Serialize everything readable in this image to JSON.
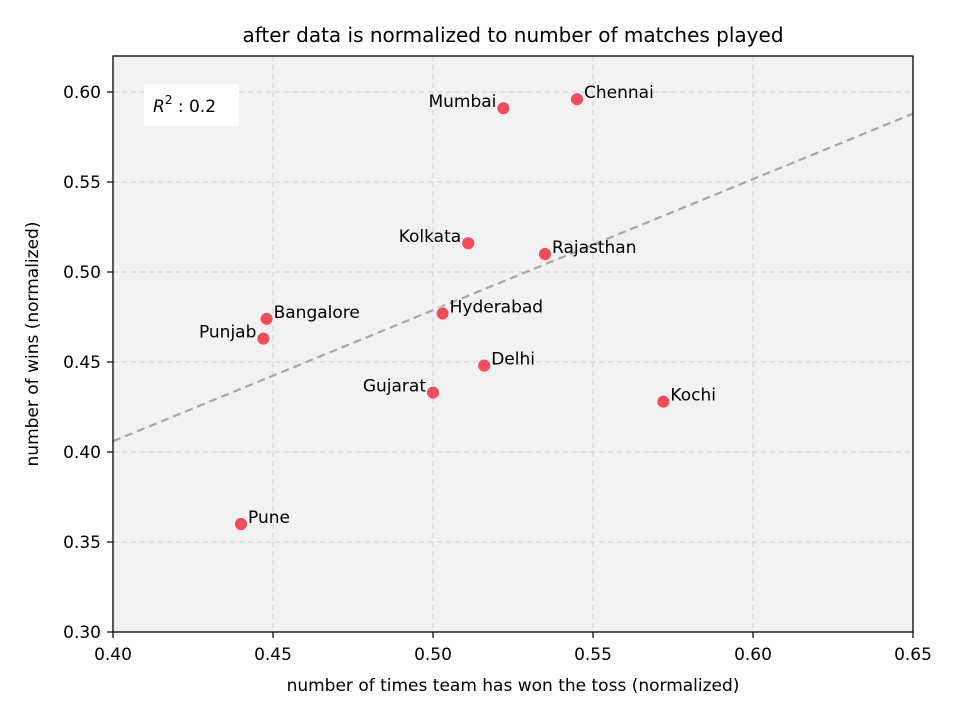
{
  "chart_data": {
    "type": "scatter",
    "title": "after data is normalized to number of matches played",
    "xlabel": "number of times team has won the toss (normalized)",
    "ylabel": "number of wins (normalized)",
    "xlim": [
      0.4,
      0.65
    ],
    "ylim": [
      0.3,
      0.62
    ],
    "xticks": [
      "0.40",
      "0.45",
      "0.50",
      "0.55",
      "0.60",
      "0.65"
    ],
    "yticks": [
      "0.30",
      "0.35",
      "0.40",
      "0.45",
      "0.50",
      "0.55",
      "0.60"
    ],
    "grid": true,
    "point_color": "#f44c58",
    "trendline_color": "#a8a8a8",
    "background_color": "#f2f2f2",
    "annotation": {
      "prefix": "R",
      "sup": "2",
      "suffix": " : 0.2"
    },
    "points": [
      {
        "name": "Mumbai",
        "x": 0.522,
        "y": 0.591,
        "label_side": "left"
      },
      {
        "name": "Chennai",
        "x": 0.545,
        "y": 0.596,
        "label_side": "right"
      },
      {
        "name": "Kolkata",
        "x": 0.511,
        "y": 0.516,
        "label_side": "left"
      },
      {
        "name": "Rajasthan",
        "x": 0.535,
        "y": 0.51,
        "label_side": "right"
      },
      {
        "name": "Bangalore",
        "x": 0.448,
        "y": 0.474,
        "label_side": "right"
      },
      {
        "name": "Hyderabad",
        "x": 0.503,
        "y": 0.477,
        "label_side": "right"
      },
      {
        "name": "Punjab",
        "x": 0.447,
        "y": 0.463,
        "label_side": "left"
      },
      {
        "name": "Delhi",
        "x": 0.516,
        "y": 0.448,
        "label_side": "right"
      },
      {
        "name": "Gujarat",
        "x": 0.5,
        "y": 0.433,
        "label_side": "left"
      },
      {
        "name": "Kochi",
        "x": 0.572,
        "y": 0.428,
        "label_side": "right"
      },
      {
        "name": "Pune",
        "x": 0.44,
        "y": 0.36,
        "label_side": "right"
      }
    ],
    "trendline": [
      {
        "x": 0.4,
        "y": 0.406
      },
      {
        "x": 0.65,
        "y": 0.588
      }
    ]
  }
}
